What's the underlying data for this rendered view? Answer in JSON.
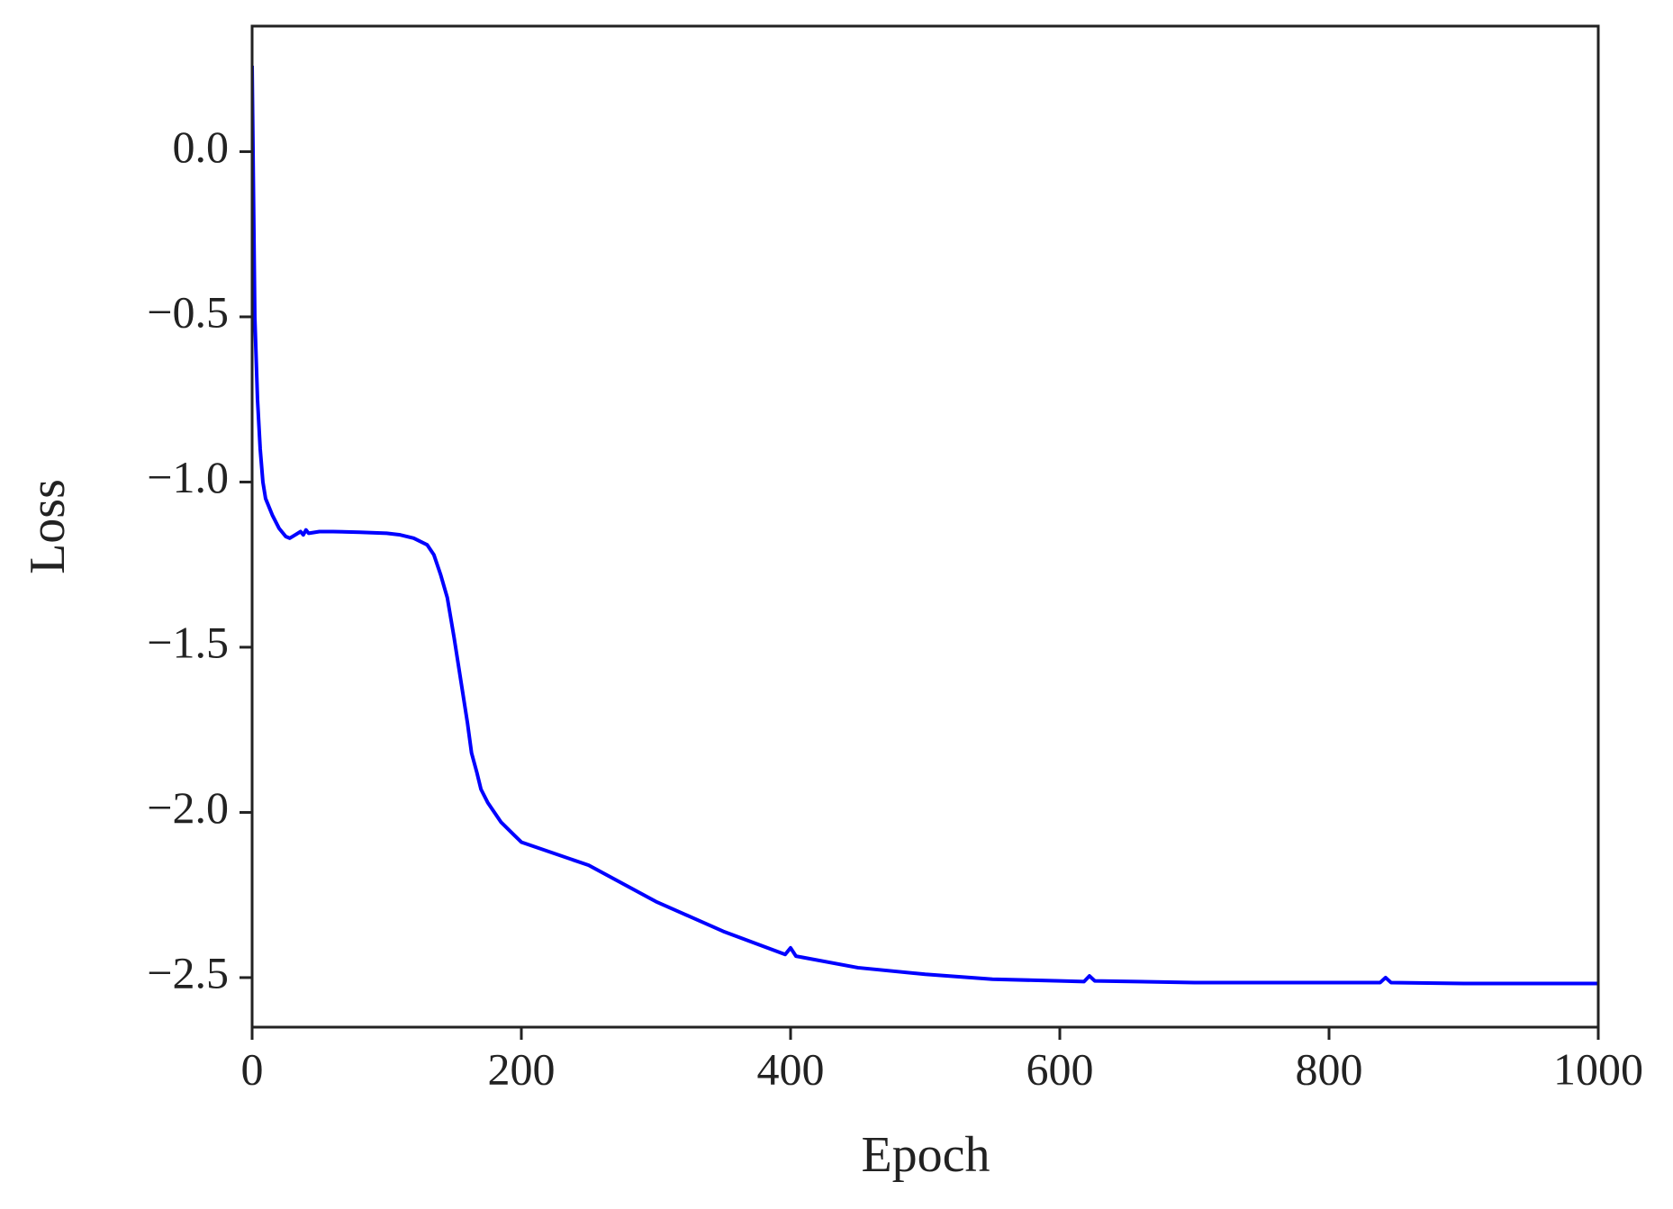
{
  "chart_data": {
    "type": "line",
    "x_label": "Epoch",
    "y_label": "Loss",
    "xlim": [
      0,
      1000
    ],
    "ylim": [
      -2.65,
      0.38
    ],
    "xticks": [
      0,
      200,
      400,
      600,
      800,
      1000
    ],
    "yticks": [
      {
        "value": 0,
        "label": "0.0"
      },
      {
        "value": -0.5,
        "label": "−0.5"
      },
      {
        "value": -1,
        "label": "−1.0"
      },
      {
        "value": -1.5,
        "label": "−1.5"
      },
      {
        "value": -2,
        "label": "−2.0"
      },
      {
        "value": -2.5,
        "label": "−2.5"
      }
    ],
    "grid": false,
    "series": [
      {
        "color": "#0000ff",
        "x": [
          0,
          2,
          4,
          6,
          8,
          10,
          15,
          20,
          25,
          28,
          32,
          36,
          38,
          40,
          42,
          50,
          60,
          80,
          100,
          110,
          120,
          130,
          135,
          140,
          145,
          150,
          155,
          160,
          163,
          167,
          170,
          175,
          185,
          195,
          200,
          250,
          300,
          350,
          396,
          400,
          404,
          450,
          500,
          550,
          600,
          618,
          622,
          626,
          700,
          800,
          838,
          842,
          846,
          900,
          1000
        ],
        "values": [
          0.26,
          -0.5,
          -0.75,
          -0.9,
          -1.0,
          -1.05,
          -1.1,
          -1.14,
          -1.165,
          -1.17,
          -1.16,
          -1.15,
          -1.16,
          -1.145,
          -1.155,
          -1.15,
          -1.15,
          -1.152,
          -1.155,
          -1.16,
          -1.17,
          -1.19,
          -1.22,
          -1.28,
          -1.35,
          -1.47,
          -1.6,
          -1.73,
          -1.82,
          -1.88,
          -1.93,
          -1.97,
          -2.03,
          -2.07,
          -2.09,
          -2.16,
          -2.27,
          -2.36,
          -2.43,
          -2.41,
          -2.435,
          -2.47,
          -2.49,
          -2.505,
          -2.51,
          -2.512,
          -2.495,
          -2.51,
          -2.515,
          -2.515,
          -2.515,
          -2.5,
          -2.515,
          -2.518,
          -2.518
        ]
      }
    ]
  }
}
